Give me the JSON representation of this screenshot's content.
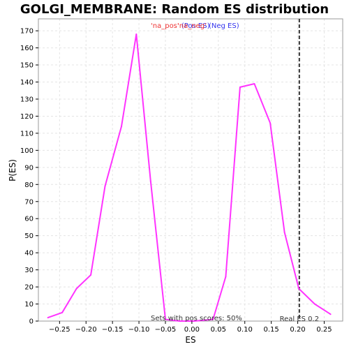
{
  "chart_data": {
    "type": "line",
    "title": "GOLGI_MEMBRANE: Random ES distribution",
    "xlabel": "ES",
    "ylabel": "P(ES)",
    "xlim": [
      -0.29,
      0.285
    ],
    "ylim": [
      0,
      177
    ],
    "x_ticks": [
      -0.25,
      -0.2,
      -0.15,
      -0.1,
      -0.05,
      0.0,
      0.05,
      0.1,
      0.15,
      0.2,
      0.25
    ],
    "x_tick_labels": [
      "−0.25",
      "−0.20",
      "−0.15",
      "−0.10",
      "−0.05",
      "0.00",
      "0.05",
      "0.10",
      "0.15",
      "0.20",
      "0.25"
    ],
    "y_ticks": [
      0,
      10,
      20,
      30,
      40,
      50,
      60,
      70,
      80,
      90,
      100,
      110,
      120,
      130,
      140,
      150,
      160,
      170
    ],
    "grid": true,
    "series": [
      {
        "color": "#ff33ff",
        "x": [
          -0.272,
          -0.245,
          -0.218,
          -0.191,
          -0.164,
          -0.133,
          -0.105,
          -0.078,
          -0.05,
          -0.023,
          0.004,
          0.04,
          0.064,
          0.091,
          0.118,
          0.148,
          0.175,
          0.202,
          0.232,
          0.262
        ],
        "y": [
          2,
          5,
          19,
          27,
          79,
          114,
          168,
          82,
          1,
          0,
          0,
          1,
          26,
          137,
          139,
          116,
          52,
          19,
          10,
          4
        ]
      }
    ],
    "legend": {
      "placement": "top-center",
      "entries": [
        {
          "label": "'na_pos'",
          "color": "#ee3333"
        },
        {
          "label": "'na_neg'",
          "color": "#ee3333"
        },
        {
          "label": "(Pos ES)",
          "color": "#3333ee"
        },
        {
          "label": "(Neg ES)",
          "color": "#3333ee"
        }
      ]
    },
    "real_es": {
      "value": 0.203,
      "label": "Real ES 0.2",
      "color": "#333333"
    },
    "annotation": "Sets with pos scores: 50%"
  }
}
